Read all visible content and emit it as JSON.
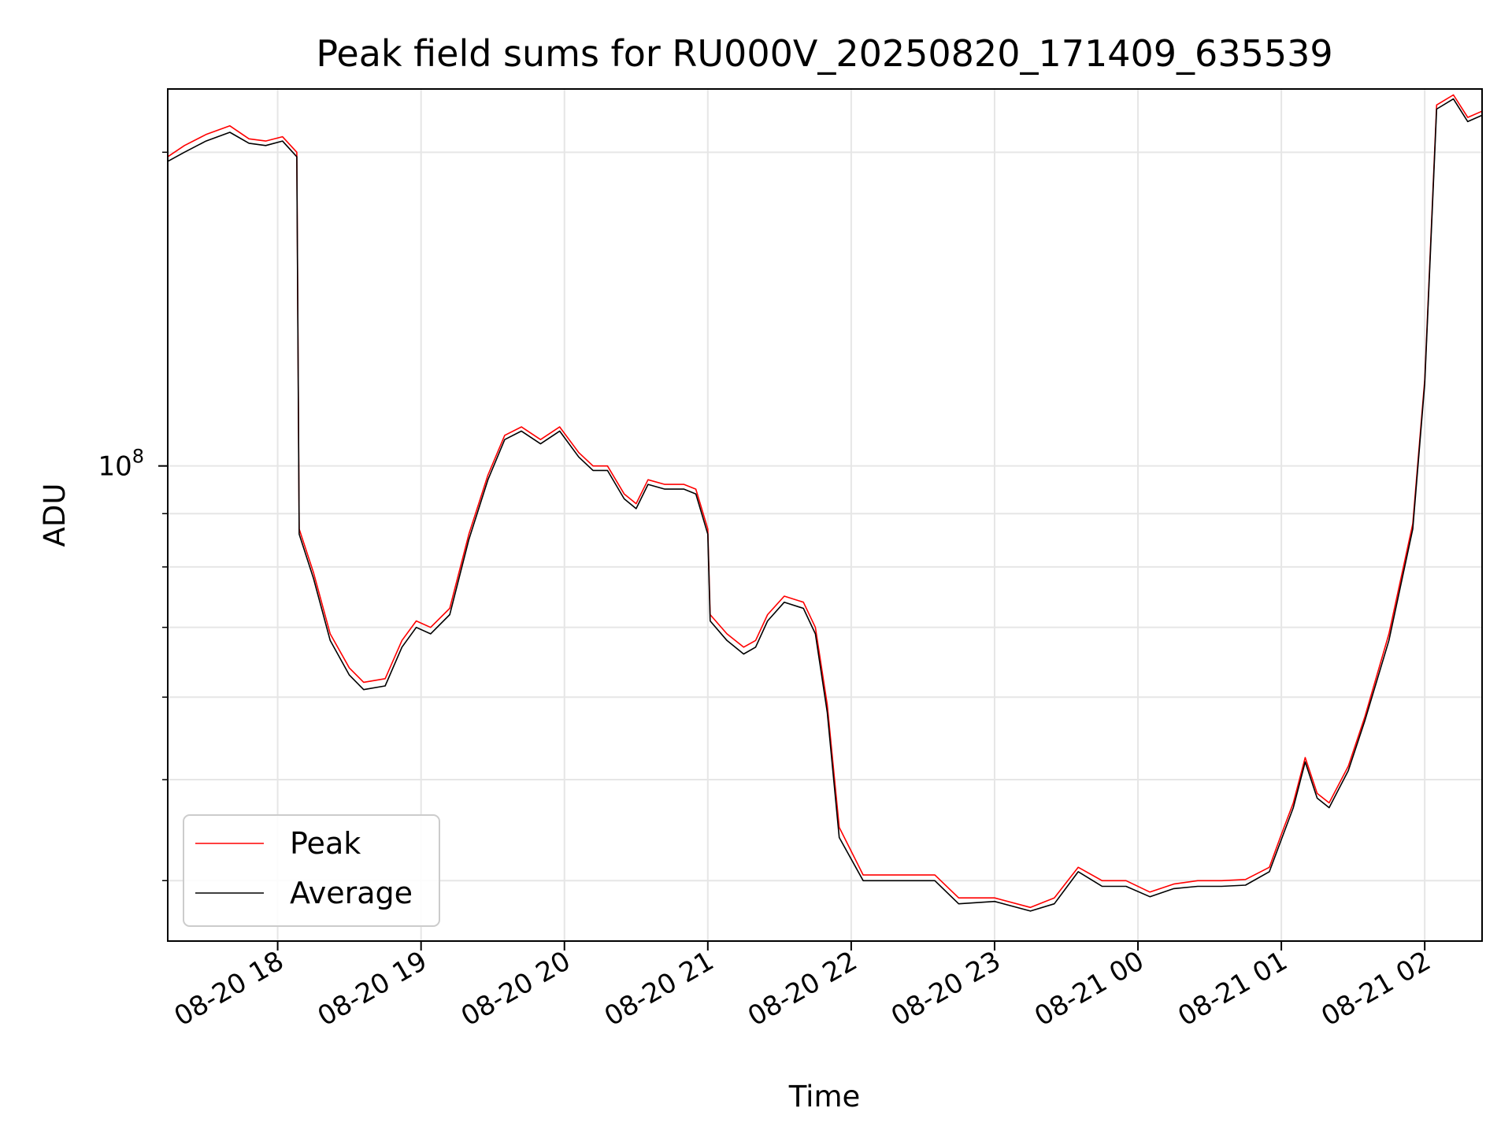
{
  "chart_data": {
    "type": "line",
    "title": "Peak field sums for RU000V_20250820_171409_635539",
    "xlabel": "Time",
    "ylabel": "ADU",
    "y_scale": "log",
    "ylim": [
      35000000,
      230000000
    ],
    "xlim": [
      "08-20 17:14",
      "08-21 02:24"
    ],
    "grid": true,
    "legend": "lower-left",
    "x_ticks": [
      "08-20 18",
      "08-20 19",
      "08-20 20",
      "08-20 21",
      "08-20 22",
      "08-20 23",
      "08-21 00",
      "08-21 01",
      "08-21 02"
    ],
    "y_ticks": [
      {
        "value": 100000000,
        "label_base": "10",
        "label_exp": "8"
      }
    ],
    "y_minor_ticks": [
      40000000,
      50000000,
      60000000,
      70000000,
      80000000,
      90000000,
      200000000
    ],
    "x": [
      "08-20 17:14",
      "08-20 17:21",
      "08-20 17:30",
      "08-20 17:40",
      "08-20 17:48",
      "08-20 17:55",
      "08-20 18:02",
      "08-20 18:08",
      "08-20 18:09",
      "08-20 18:15",
      "08-20 18:22",
      "08-20 18:30",
      "08-20 18:36",
      "08-20 18:45",
      "08-20 18:52",
      "08-20 18:58",
      "08-20 19:04",
      "08-20 19:12",
      "08-20 19:20",
      "08-20 19:28",
      "08-20 19:35",
      "08-20 19:42",
      "08-20 19:50",
      "08-20 19:58",
      "08-20 20:06",
      "08-20 20:12",
      "08-20 20:18",
      "08-20 20:25",
      "08-20 20:30",
      "08-20 20:35",
      "08-20 20:42",
      "08-20 20:50",
      "08-20 20:55",
      "08-20 21:00",
      "08-20 21:01",
      "08-20 21:08",
      "08-20 21:15",
      "08-20 21:20",
      "08-20 21:25",
      "08-20 21:32",
      "08-20 21:40",
      "08-20 21:45",
      "08-20 21:50",
      "08-20 21:55",
      "08-20 22:05",
      "08-20 22:20",
      "08-20 22:35",
      "08-20 22:45",
      "08-20 23:00",
      "08-20 23:15",
      "08-20 23:25",
      "08-20 23:35",
      "08-20 23:45",
      "08-20 23:55",
      "08-21 00:05",
      "08-21 00:15",
      "08-21 00:25",
      "08-21 00:35",
      "08-21 00:45",
      "08-21 00:55",
      "08-21 01:00",
      "08-21 01:05",
      "08-21 01:10",
      "08-21 01:15",
      "08-21 01:20",
      "08-21 01:28",
      "08-21 01:35",
      "08-21 01:45",
      "08-21 01:55",
      "08-21 02:00",
      "08-21 02:05",
      "08-21 02:12",
      "08-21 02:18",
      "08-21 02:24"
    ],
    "series": [
      {
        "name": "Average",
        "color": "#000000",
        "values": [
          196000000,
          200000000,
          205000000,
          209000000,
          204000000,
          203000000,
          205000000,
          198000000,
          86000000,
          78000000,
          68000000,
          63000000,
          61000000,
          61500000,
          67000000,
          70000000,
          69000000,
          72000000,
          85000000,
          97000000,
          106000000,
          108000000,
          105000000,
          108000000,
          102000000,
          99000000,
          99000000,
          93000000,
          91000000,
          96000000,
          95000000,
          95000000,
          94000000,
          86000000,
          71000000,
          68000000,
          66000000,
          67000000,
          71000000,
          74000000,
          73000000,
          69000000,
          58000000,
          44000000,
          40000000,
          40000000,
          40000000,
          38000000,
          38200000,
          37400000,
          38000000,
          40800000,
          39500000,
          39500000,
          38600000,
          39300000,
          39500000,
          39500000,
          39600000,
          40800000,
          43800000,
          47000000,
          52000000,
          48000000,
          47000000,
          51000000,
          57000000,
          68000000,
          87000000,
          120000000,
          220000000,
          225000000,
          214000000,
          217000000
        ]
      },
      {
        "name": "Peak",
        "color": "#ff0000",
        "values": [
          198000000,
          203000000,
          208000000,
          212000000,
          206000000,
          205000000,
          207000000,
          200000000,
          87000000,
          79000000,
          69000000,
          64000000,
          62000000,
          62500000,
          68000000,
          71000000,
          70000000,
          73000000,
          86000000,
          98000000,
          107000000,
          109000000,
          106000000,
          109000000,
          103000000,
          100000000,
          100000000,
          94000000,
          92000000,
          97000000,
          96000000,
          96000000,
          95000000,
          87000000,
          72000000,
          69000000,
          67000000,
          68000000,
          72000000,
          75000000,
          74000000,
          70000000,
          59000000,
          45000000,
          40500000,
          40500000,
          40500000,
          38500000,
          38500000,
          37700000,
          38500000,
          41200000,
          40000000,
          40000000,
          39000000,
          39700000,
          40000000,
          40000000,
          40100000,
          41200000,
          44300000,
          47500000,
          52500000,
          48500000,
          47500000,
          51500000,
          57500000,
          69000000,
          88000000,
          121000000,
          222000000,
          227000000,
          216000000,
          219000000
        ]
      }
    ]
  }
}
